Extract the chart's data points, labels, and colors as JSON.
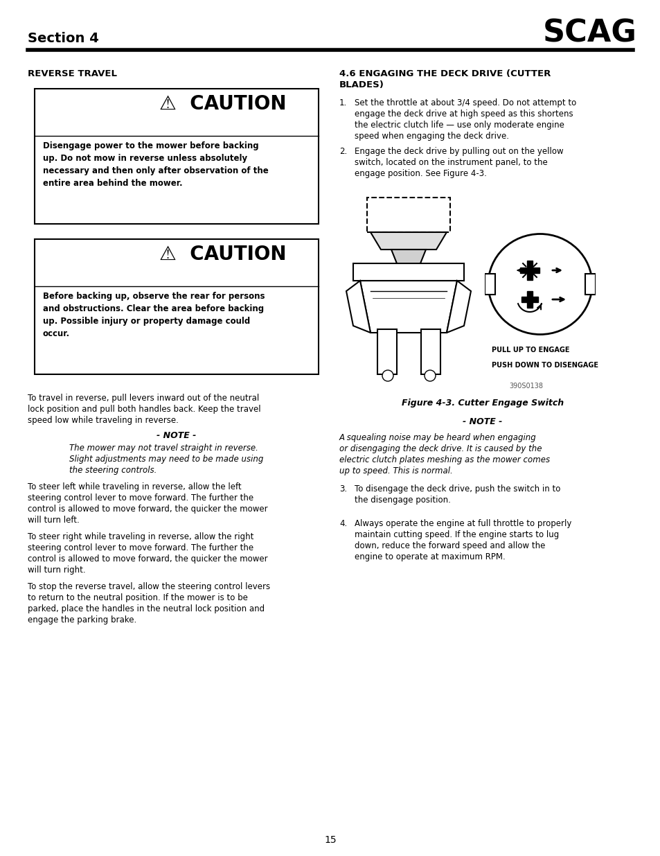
{
  "page_width": 9.54,
  "page_height": 12.35,
  "bg_color": "#ffffff",
  "header_text": "Section 4",
  "header_logo": "SCAG",
  "reverse_travel_heading": "REVERSE TRAVEL",
  "section46_heading_line1": "4.6 ENGAGING THE DECK DRIVE (CUTTER",
  "section46_heading_line2": "BLADES)",
  "figure_caption": "Figure 4-3. Cutter Engage Switch",
  "figure_label1": "PULL UP TO ENGAGE",
  "figure_label2": "PUSH DOWN TO DISENGAGE",
  "figure_id": "390S0138",
  "page_number": "15"
}
